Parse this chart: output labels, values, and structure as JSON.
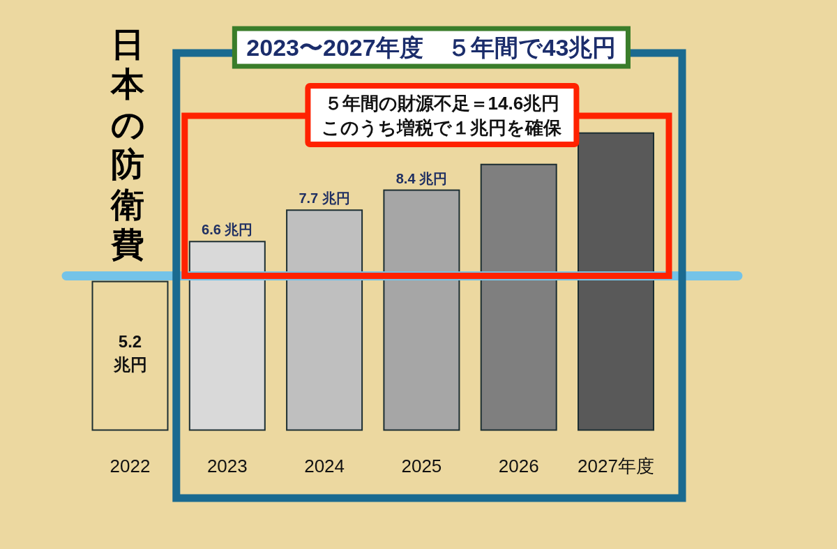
{
  "chart_data": {
    "type": "bar",
    "title": "日本の防衛費",
    "subtitle": "2023〜2027年度　５年間で43兆円",
    "categories": [
      "2022",
      "2023",
      "2024",
      "2025",
      "2026",
      "2027年度"
    ],
    "values": [
      5.2,
      6.6,
      7.7,
      8.4,
      9.3,
      10.4
    ],
    "colors": [
      "#ecd8a0",
      "#d9d9d9",
      "#bfbfbf",
      "#a6a6a6",
      "#7f7f7f",
      "#595959"
    ],
    "value_labels": [
      "5.2\n兆円",
      "6.6 兆円",
      "7.7 兆円",
      "8.4 兆円",
      null,
      null
    ],
    "ref_lines": [
      {
        "axis": "y",
        "value": 5.4,
        "color": "#74c3e8"
      }
    ],
    "annotations": [
      "５年間の財源不足＝14.6兆円",
      "このうち増税で１兆円を確保"
    ]
  }
}
